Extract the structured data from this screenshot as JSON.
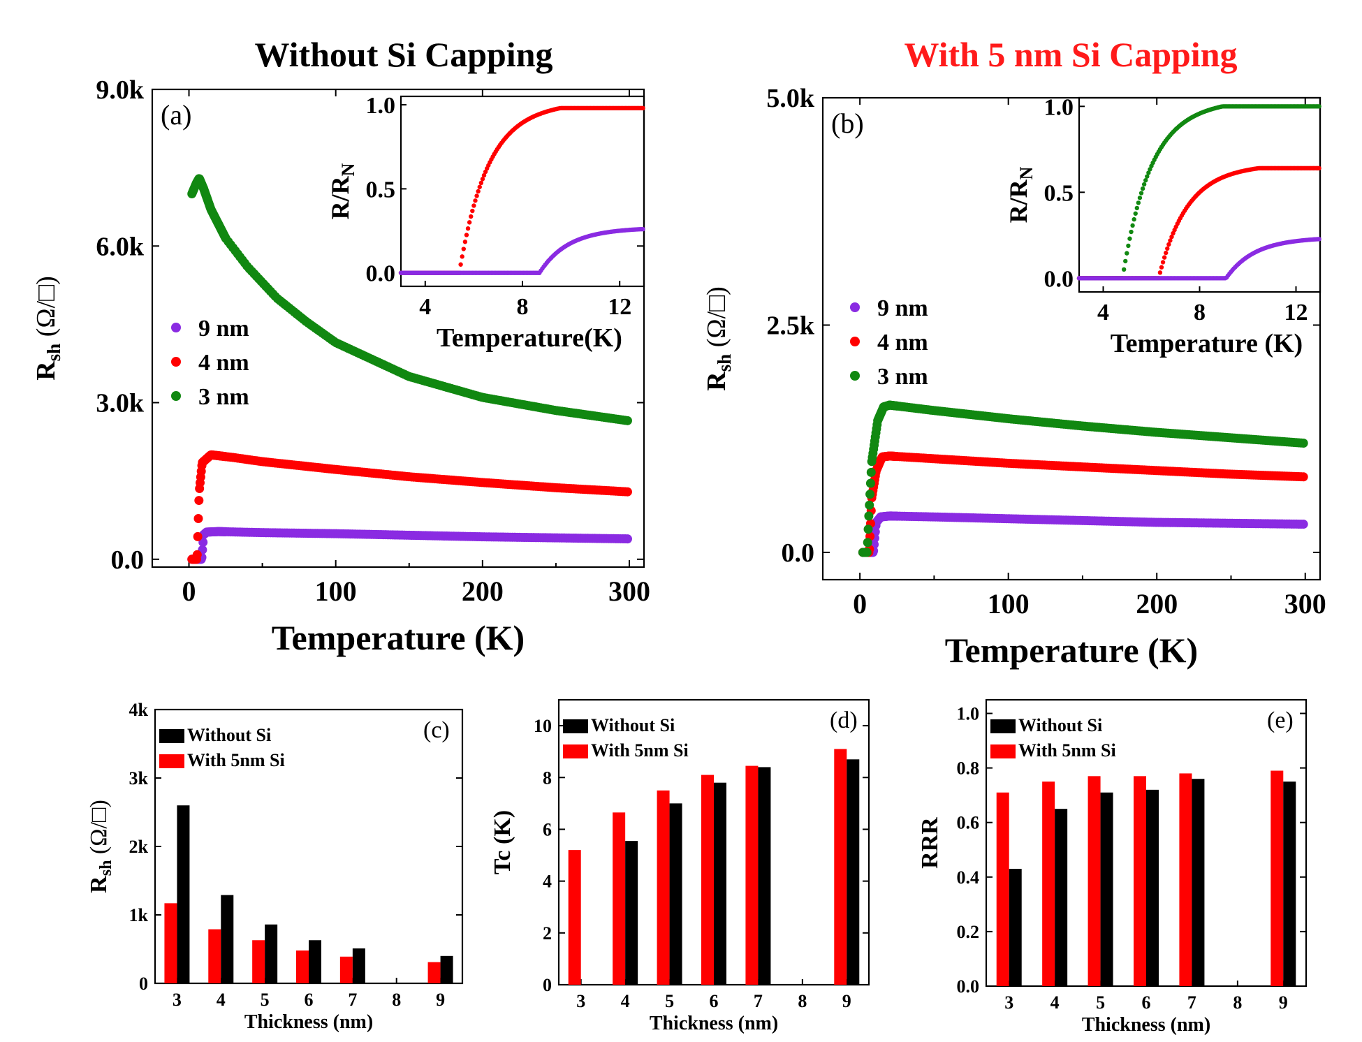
{
  "panel_a": {
    "title": "Without Si Capping",
    "title_color": "#000000",
    "label": "(a)",
    "xlabel": "Temperature (K)",
    "ylabel": "R",
    "ylabel_sub": "sh",
    "ylabel_unit": "(Ω/□)",
    "xlim": [
      -25,
      310
    ],
    "ylim": [
      -150,
      9000
    ],
    "xticks": [
      {
        "v": 0,
        "t": "0"
      },
      {
        "v": 100,
        "t": "100"
      },
      {
        "v": 200,
        "t": "200"
      },
      {
        "v": 300,
        "t": "300"
      }
    ],
    "yticks": [
      {
        "v": 0,
        "t": "0.0"
      },
      {
        "v": 3000,
        "t": "3.0k"
      },
      {
        "v": 6000,
        "t": "6.0k"
      },
      {
        "v": 9000,
        "t": "9.0k"
      }
    ],
    "legend": [
      {
        "label": "9 nm",
        "color": "#8a2be2"
      },
      {
        "label": "4 nm",
        "color": "#ff0000"
      },
      {
        "label": "3 nm",
        "color": "#118811"
      }
    ],
    "inset": {
      "xlabel": "Temperature(K)",
      "ylabel": "R/R",
      "ylabel_sub": "N",
      "xlim": [
        3,
        13
      ],
      "ylim": [
        -0.08,
        1.05
      ],
      "xticks": [
        {
          "v": 4,
          "t": "4"
        },
        {
          "v": 8,
          "t": "8"
        },
        {
          "v": 12,
          "t": "12"
        }
      ],
      "yticks": [
        {
          "v": 0,
          "t": "0.0"
        },
        {
          "v": 0.5,
          "t": "0.5"
        },
        {
          "v": 1.0,
          "t": "1.0"
        }
      ]
    }
  },
  "panel_b": {
    "title": "With 5 nm Si Capping",
    "title_color": "#ff1a1a",
    "label": "(b)",
    "xlabel": "Temperature (K)",
    "ylabel": "R",
    "ylabel_sub": "sh",
    "ylabel_unit": "(Ω/□)",
    "xlim": [
      -25,
      310
    ],
    "ylim": [
      -300,
      5000
    ],
    "xticks": [
      {
        "v": 0,
        "t": "0"
      },
      {
        "v": 100,
        "t": "100"
      },
      {
        "v": 200,
        "t": "200"
      },
      {
        "v": 300,
        "t": "300"
      }
    ],
    "yticks": [
      {
        "v": 0,
        "t": "0.0"
      },
      {
        "v": 2500,
        "t": "2.5k"
      },
      {
        "v": 5000,
        "t": "5.0k"
      }
    ],
    "legend": [
      {
        "label": "9 nm",
        "color": "#8a2be2"
      },
      {
        "label": "4 nm",
        "color": "#ff0000"
      },
      {
        "label": "3 nm",
        "color": "#118811"
      }
    ],
    "inset": {
      "xlabel": "Temperature (K)",
      "ylabel": "R/R",
      "ylabel_sub": "N",
      "xlim": [
        3,
        13
      ],
      "ylim": [
        -0.08,
        1.05
      ],
      "xticks": [
        {
          "v": 4,
          "t": "4"
        },
        {
          "v": 8,
          "t": "8"
        },
        {
          "v": 12,
          "t": "12"
        }
      ],
      "yticks": [
        {
          "v": 0,
          "t": "0.0"
        },
        {
          "v": 0.5,
          "t": "0.5"
        },
        {
          "v": 1.0,
          "t": "1.0"
        }
      ]
    }
  },
  "panel_c": {
    "label": "(c)",
    "xlabel": "Thickness (nm)",
    "ylabel": "R",
    "ylabel_sub": "sh",
    "ylabel_unit": "(Ω/□)",
    "ylim": [
      0,
      4000
    ],
    "yticks": [
      {
        "v": 0,
        "t": "0"
      },
      {
        "v": 1000,
        "t": "1k"
      },
      {
        "v": 2000,
        "t": "2k"
      },
      {
        "v": 3000,
        "t": "3k"
      },
      {
        "v": 4000,
        "t": "4k"
      }
    ]
  },
  "panel_d": {
    "label": "(d)",
    "xlabel": "Thickness (nm)",
    "ylabel": "Tc (K)",
    "ylim": [
      0,
      11
    ],
    "yticks": [
      {
        "v": 0,
        "t": "0"
      },
      {
        "v": 2,
        "t": "2"
      },
      {
        "v": 4,
        "t": "4"
      },
      {
        "v": 6,
        "t": "6"
      },
      {
        "v": 8,
        "t": "8"
      },
      {
        "v": 10,
        "t": "10"
      }
    ]
  },
  "panel_e": {
    "label": "(e)",
    "xlabel": "Thickness (nm)",
    "ylabel": "RRR",
    "ylim": [
      0,
      1.05
    ],
    "yticks": [
      {
        "v": 0,
        "t": "0.0"
      },
      {
        "v": 0.2,
        "t": "0.2"
      },
      {
        "v": 0.4,
        "t": "0.4"
      },
      {
        "v": 0.6,
        "t": "0.6"
      },
      {
        "v": 0.8,
        "t": "0.8"
      },
      {
        "v": 1.0,
        "t": "1.0"
      }
    ]
  },
  "bar_legend": {
    "without": "Without Si",
    "with": "With 5nm Si"
  },
  "chart_data": [
    {
      "type": "scatter",
      "id": "a",
      "title": "Without Si Capping",
      "xlabel": "Temperature (K)",
      "ylabel": "Rsh (Ω/□)",
      "series": [
        {
          "name": "9 nm",
          "color": "#8a2be2",
          "tc": 8.7,
          "x": [
            2,
            8.7,
            10,
            12,
            20,
            50,
            100,
            150,
            200,
            250,
            300
          ],
          "y": [
            0,
            0,
            470,
            520,
            530,
            510,
            490,
            460,
            430,
            410,
            390
          ]
        },
        {
          "name": "4 nm",
          "color": "#ff0000",
          "tc": 5.5,
          "x": [
            2,
            5.5,
            7,
            9,
            15,
            30,
            50,
            100,
            150,
            200,
            250,
            300
          ],
          "y": [
            0,
            0,
            1300,
            1850,
            2000,
            1950,
            1870,
            1720,
            1580,
            1470,
            1370,
            1290
          ]
        },
        {
          "name": "3 nm",
          "color": "#118811",
          "tc": null,
          "x": [
            2,
            5,
            7,
            10,
            15,
            25,
            40,
            60,
            80,
            100,
            150,
            200,
            250,
            300
          ],
          "y": [
            7000,
            7200,
            7300,
            7100,
            6700,
            6150,
            5600,
            5000,
            4550,
            4150,
            3500,
            3100,
            2850,
            2650
          ]
        }
      ],
      "inset": {
        "xlabel": "Temperature(K)",
        "ylabel": "R/RN",
        "series": [
          {
            "name": "4 nm",
            "color": "#ff0000",
            "tc": 5.4,
            "plateau": 0.98
          },
          {
            "name": "9 nm",
            "color": "#8a2be2",
            "tc": 8.7,
            "plateau": 0.26
          }
        ]
      }
    },
    {
      "type": "scatter",
      "id": "b",
      "title": "With 5 nm Si Capping",
      "xlabel": "Temperature (K)",
      "ylabel": "Rsh (Ω/□)",
      "series": [
        {
          "name": "9 nm",
          "color": "#8a2be2",
          "tc": 9.1,
          "x": [
            2,
            9.1,
            11,
            14,
            20,
            50,
            100,
            150,
            200,
            250,
            300
          ],
          "y": [
            0,
            0,
            330,
            390,
            400,
            390,
            370,
            350,
            330,
            320,
            310
          ]
        },
        {
          "name": "4 nm",
          "color": "#ff0000",
          "tc": 6.3,
          "x": [
            2,
            6.3,
            8,
            11,
            15,
            20,
            50,
            100,
            150,
            200,
            250,
            300
          ],
          "y": [
            0,
            0,
            600,
            900,
            1050,
            1060,
            1030,
            980,
            940,
            900,
            860,
            830
          ]
        },
        {
          "name": "3 nm",
          "color": "#118811",
          "tc": 4.9,
          "x": [
            2,
            4.9,
            6,
            8,
            12,
            16,
            20,
            50,
            100,
            150,
            200,
            250,
            300
          ],
          "y": [
            0,
            0,
            400,
            1000,
            1450,
            1600,
            1620,
            1560,
            1470,
            1390,
            1320,
            1260,
            1200
          ]
        }
      ],
      "inset": {
        "xlabel": "Temperature (K)",
        "ylabel": "R/RN",
        "series": [
          {
            "name": "3 nm",
            "color": "#118811",
            "tc": 4.8,
            "plateau": 1.0
          },
          {
            "name": "4 nm",
            "color": "#ff0000",
            "tc": 6.3,
            "plateau": 0.64
          },
          {
            "name": "9 nm",
            "color": "#8a2be2",
            "tc": 9.1,
            "plateau": 0.23
          }
        ]
      }
    },
    {
      "type": "bar",
      "id": "c",
      "xlabel": "Thickness (nm)",
      "ylabel": "Rsh (Ω/□)",
      "categories": [
        "3",
        "4",
        "5",
        "6",
        "7",
        "8",
        "9"
      ],
      "series": [
        {
          "name": "Without Si",
          "color": "#000000",
          "values": [
            2600,
            1290,
            860,
            630,
            510,
            null,
            400
          ]
        },
        {
          "name": "With 5nm Si",
          "color": "#ff0000",
          "values": [
            1170,
            790,
            630,
            480,
            390,
            null,
            310
          ]
        }
      ]
    },
    {
      "type": "bar",
      "id": "d",
      "xlabel": "Thickness (nm)",
      "ylabel": "Tc (K)",
      "categories": [
        "3",
        "4",
        "5",
        "6",
        "7",
        "8",
        "9"
      ],
      "series": [
        {
          "name": "Without Si",
          "color": "#000000",
          "values": [
            null,
            5.55,
            7.0,
            7.8,
            8.4,
            null,
            8.7
          ]
        },
        {
          "name": "With 5nm Si",
          "color": "#ff0000",
          "values": [
            5.2,
            6.65,
            7.5,
            8.1,
            8.45,
            null,
            9.1
          ]
        }
      ]
    },
    {
      "type": "bar",
      "id": "e",
      "xlabel": "Thickness (nm)",
      "ylabel": "RRR",
      "categories": [
        "3",
        "4",
        "5",
        "6",
        "7",
        "8",
        "9"
      ],
      "series": [
        {
          "name": "Without Si",
          "color": "#000000",
          "values": [
            0.43,
            0.65,
            0.71,
            0.72,
            0.76,
            null,
            0.75
          ]
        },
        {
          "name": "With 5nm Si",
          "color": "#ff0000",
          "values": [
            0.71,
            0.75,
            0.77,
            0.77,
            0.78,
            null,
            0.79
          ]
        }
      ]
    }
  ]
}
